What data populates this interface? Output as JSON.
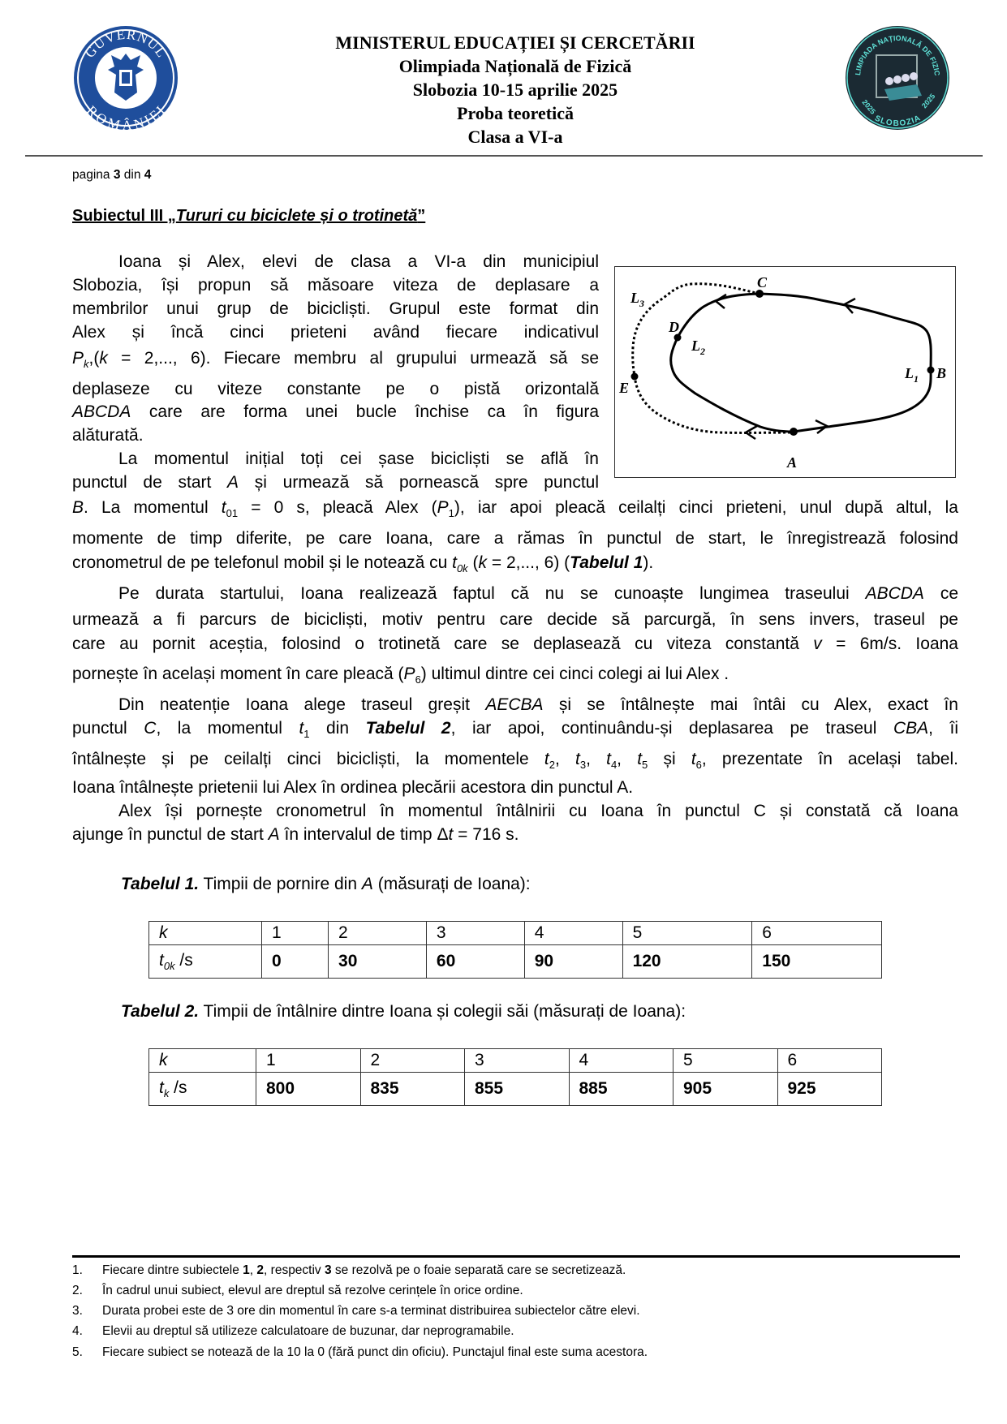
{
  "header": {
    "lines": [
      "MINISTERUL EDUCAȚIEI ȘI CERCETĂRII",
      "Olimpiada Națională de Fizică",
      "Slobozia 10-15 aprilie 2025",
      "Proba teoretică",
      "Clasa a VI-a"
    ],
    "logo_left_text": [
      "GUVERNUL",
      "ROMÂNIEI"
    ],
    "logo_right_text": [
      "OLIMPIADA NAȚIONALĂ DE FIZICĂ",
      "2025",
      "SLOBOZIA",
      "2025"
    ],
    "colors": {
      "gov_blue": "#1f4e9c",
      "olymp_dark": "#1b2a33",
      "olymp_teal": "#5fe0d6"
    }
  },
  "page_info": {
    "prefix": "pagina ",
    "current": "3",
    "mid": " din ",
    "total": "4"
  },
  "subject": {
    "prefix": "Subiectul III „",
    "title": "Tururi cu biciclete și o trotinetă",
    "suffix": "”"
  },
  "body": {
    "lines": [
      {
        "segs": [
          [
            "Ioana și Alex, elevi de clasa a VI-a din municipiul",
            ""
          ]
        ]
      },
      {
        "segs": [
          [
            "Slobozia, își propun să măsoare viteza de deplasare a",
            ""
          ]
        ]
      },
      {
        "segs": [
          [
            "membrilor unui grup de bicicliști. Grupul este format din",
            ""
          ]
        ]
      },
      {
        "segs": [
          [
            "Alex și încă cinci prieteni având fiecare indicativul",
            ""
          ]
        ]
      },
      {
        "segs": [
          [
            "P",
            "i"
          ],
          [
            "k",
            "isub"
          ],
          [
            ",(",
            ""
          ],
          [
            "k",
            "i"
          ],
          [
            " = 2,..., 6). Fiecare membru al grupului urmează să se",
            ""
          ]
        ]
      },
      {
        "segs": [
          [
            "deplaseze cu viteze constante pe o pistă orizontală",
            ""
          ]
        ]
      },
      {
        "segs": [
          [
            "ABCDA",
            "i"
          ],
          [
            " care are forma unei bucle închise ca în figura",
            ""
          ]
        ]
      },
      {
        "segs": [
          [
            "alăturată.",
            ""
          ]
        ]
      },
      {
        "segs": [
          [
            "La momentul inițial toți cei șase bicicliști se află în",
            ""
          ]
        ]
      },
      {
        "segs": [
          [
            "punctul de start ",
            ""
          ],
          [
            "A",
            "i"
          ],
          [
            " și urmează să pornească spre punctul",
            ""
          ]
        ]
      },
      {
        "segs": [
          [
            "B",
            "i"
          ],
          [
            ". La momentul ",
            ""
          ],
          [
            "t",
            "i"
          ],
          [
            "01",
            "sub"
          ],
          [
            " = 0 s, pleacă Alex (",
            ""
          ],
          [
            "P",
            "i"
          ],
          [
            "1",
            "sub"
          ],
          [
            "), iar apoi pleacă ceilalți cinci prieteni, unul după altul, la",
            ""
          ]
        ]
      },
      {
        "segs": [
          [
            "momente de timp diferite, pe care Ioana, care a rămas în punctul de start, le înregistrează folosind",
            ""
          ]
        ]
      },
      {
        "segs": [
          [
            "cronometrul de pe telefonul mobil și le notează cu ",
            ""
          ],
          [
            "t",
            "i"
          ],
          [
            "0k",
            "isub"
          ],
          [
            "  (",
            ""
          ],
          [
            "k",
            "i"
          ],
          [
            " = 2,..., 6) (",
            ""
          ],
          [
            "Tabelul 1",
            "bi"
          ],
          [
            ").",
            ""
          ]
        ]
      },
      {
        "segs": [
          [
            "Pe durata startului, Ioana realizează faptul că nu se cunoaște lungimea traseului ",
            ""
          ],
          [
            "ABCDA",
            "i"
          ],
          [
            " ce",
            ""
          ]
        ]
      },
      {
        "segs": [
          [
            "urmează a fi parcurs de bicicliști, motiv pentru care decide să parcurgă, în sens invers, traseul pe",
            ""
          ]
        ]
      },
      {
        "segs": [
          [
            "care au pornit aceștia, folosind o trotinetă care se deplasează cu viteza constantă ",
            ""
          ],
          [
            "v",
            "i"
          ],
          [
            " = 6m/s. Ioana",
            ""
          ]
        ]
      },
      {
        "segs": [
          [
            "pornește în același moment în care pleacă (",
            ""
          ],
          [
            "P",
            "i"
          ],
          [
            "6",
            "sub"
          ],
          [
            ") ultimul dintre cei cinci colegi ai lui Alex .",
            ""
          ]
        ]
      },
      {
        "segs": [
          [
            "Din neatenție Ioana alege traseul greșit ",
            ""
          ],
          [
            "AECBA",
            "i"
          ],
          [
            " și se întâlnește mai întâi cu Alex, exact în",
            ""
          ]
        ]
      },
      {
        "segs": [
          [
            "punctul ",
            ""
          ],
          [
            "C",
            "i"
          ],
          [
            ", la momentul ",
            ""
          ],
          [
            "t",
            "i"
          ],
          [
            "1",
            "sub"
          ],
          [
            " din ",
            ""
          ],
          [
            "Tabelul 2",
            "bi"
          ],
          [
            ", iar apoi, continuându-și deplasarea pe traseul ",
            ""
          ],
          [
            "CBA",
            "i"
          ],
          [
            ", îi",
            ""
          ]
        ]
      },
      {
        "segs": [
          [
            "întâlnește și pe ceilalți cinci bicicliști, la momentele ",
            ""
          ],
          [
            "t",
            "i"
          ],
          [
            "2",
            "sub"
          ],
          [
            ", ",
            ""
          ],
          [
            "t",
            "i"
          ],
          [
            "3",
            "sub"
          ],
          [
            ", ",
            ""
          ],
          [
            "t",
            "i"
          ],
          [
            "4",
            "sub"
          ],
          [
            ", ",
            ""
          ],
          [
            "t",
            "i"
          ],
          [
            "5",
            "sub"
          ],
          [
            " și ",
            ""
          ],
          [
            "t",
            "i"
          ],
          [
            "6",
            "sub"
          ],
          [
            ", prezentate în același tabel.",
            ""
          ]
        ]
      },
      {
        "segs": [
          [
            "Ioana întâlnește prietenii lui Alex în ordinea plecării acestora din punctul A.",
            ""
          ]
        ]
      },
      {
        "segs": [
          [
            "Alex își pornește cronometrul în momentul întâlnirii cu Ioana în punctul C și constată că Ioana",
            ""
          ]
        ]
      },
      {
        "segs": [
          [
            "ajunge în punctul de start ",
            ""
          ],
          [
            "A",
            "i"
          ],
          [
            " în intervalul de timp Δ",
            ""
          ],
          [
            "t",
            "i"
          ],
          [
            " = 716 s.",
            ""
          ]
        ]
      }
    ]
  },
  "figure": {
    "labels": {
      "C": "C",
      "D": "D",
      "E": "E",
      "A": "A",
      "B": "B",
      "L1": "L",
      "L1_sub": "1",
      "L2": "L",
      "L2_sub": "2",
      "L3": "L",
      "L3_sub": "3"
    }
  },
  "table1": {
    "caption_bold": "Tabelul 1.",
    "caption_text": " Timpii de pornire din ",
    "caption_var": "A",
    "caption_rest": " (măsurați de Ioana):",
    "row1_label": "k",
    "row2_label_var": "t",
    "row2_label_sub": "0k",
    "row2_label_unit": " /s",
    "k": [
      "1",
      "2",
      "3",
      "4",
      "5",
      "6"
    ],
    "values": [
      "0",
      "30",
      "60",
      "90",
      "120",
      "150"
    ]
  },
  "table2": {
    "caption_bold": "Tabelul 2.",
    "caption_text": " Timpii de întâlnire dintre Ioana și colegii săi (măsurați de Ioana):",
    "row1_label": "k",
    "row2_label_var": "t",
    "row2_label_sub": "k",
    "row2_label_unit": " /s",
    "k": [
      "1",
      "2",
      "3",
      "4",
      "5",
      "6"
    ],
    "values": [
      "800",
      "835",
      "855",
      "885",
      "905",
      "925"
    ]
  },
  "footer": {
    "items": [
      {
        "num": "1.",
        "segs": [
          [
            "Fiecare dintre subiectele ",
            ""
          ],
          [
            "1",
            "b"
          ],
          [
            ", ",
            ""
          ],
          [
            "2",
            "b"
          ],
          [
            ", respectiv ",
            ""
          ],
          [
            "3",
            "b"
          ],
          [
            " se rezolvă pe o foaie separată care se secretizează.",
            ""
          ]
        ]
      },
      {
        "num": "2.",
        "segs": [
          [
            "În cadrul unui subiect, elevul are dreptul să rezolve cerințele în orice ordine.",
            ""
          ]
        ]
      },
      {
        "num": "3.",
        "segs": [
          [
            "Durata probei este de 3 ore din momentul în care s-a terminat distribuirea subiectelor către elevi.",
            ""
          ]
        ]
      },
      {
        "num": "4.",
        "segs": [
          [
            "Elevii au dreptul să utilizeze calculatoare de buzunar, dar neprogramabile.",
            ""
          ]
        ]
      },
      {
        "num": "5.",
        "segs": [
          [
            "Fiecare subiect se notează de la 10 la 0 (fără punct din oficiu). Punctajul final este suma acestora.",
            ""
          ]
        ]
      }
    ]
  }
}
